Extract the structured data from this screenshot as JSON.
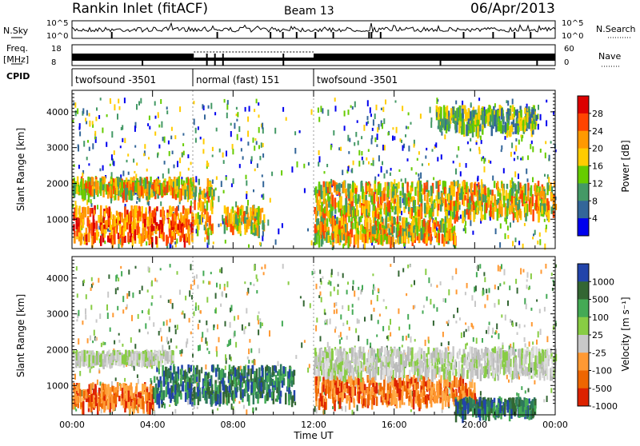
{
  "header": {
    "title": "Rankin Inlet (fitACF)",
    "beam": "Beam 13",
    "date": "06/Apr/2013"
  },
  "top_panels": {
    "nsky_label": "N.Sky",
    "nsearch_label": "N.Search",
    "nsky_ticks": [
      "10^5",
      "10^0"
    ],
    "freq_label": "Freq.",
    "freq_unit": "[MHz]",
    "freq_ticks": [
      "18",
      "8"
    ],
    "nave_label": "Nave",
    "nave_ticks": [
      "60",
      "0"
    ],
    "cpid_label": "CPID",
    "cpid_segments": [
      {
        "label": "twofsound -3501",
        "start_hour": 0,
        "end_hour": 6
      },
      {
        "label": "normal (fast) 151",
        "start_hour": 6,
        "end_hour": 12
      },
      {
        "label": "twofsound -3501",
        "start_hour": 12,
        "end_hour": 24
      }
    ]
  },
  "chart_data": [
    {
      "type": "heatmap",
      "name": "power",
      "ylabel": "Slant Range [km]",
      "yticks": [
        "4000",
        "3000",
        "2000",
        "1000"
      ],
      "ytick_values": [
        4000,
        3000,
        2000,
        1000
      ],
      "ylim": [
        180,
        4600
      ],
      "xlim": [
        0,
        24
      ],
      "colorbar_label": "Power [dB]",
      "colorbar_ticks": [
        "28",
        "24",
        "20",
        "16",
        "12",
        "8",
        "4"
      ],
      "colorbar_colors": [
        "#dd0000",
        "#ff4400",
        "#ff9900",
        "#ffcc00",
        "#66cc00",
        "#449966",
        "#336699",
        "#0000ee"
      ],
      "bands": [
        {
          "x0": 0,
          "x1": 6,
          "ymin": 500,
          "ymax": 1400,
          "level": "high"
        },
        {
          "x0": 6,
          "x1": 7,
          "ymin": 600,
          "ymax": 2200,
          "level": "mid"
        },
        {
          "x0": 7.5,
          "x1": 9.5,
          "ymin": 800,
          "ymax": 1400,
          "level": "mid"
        },
        {
          "x0": 0,
          "x1": 6,
          "ymin": 1800,
          "ymax": 2200,
          "level": "mid"
        },
        {
          "x0": 12,
          "x1": 24,
          "ymin": 1200,
          "ymax": 2100,
          "level": "mid"
        },
        {
          "x0": 12,
          "x1": 19,
          "ymin": 500,
          "ymax": 1100,
          "level": "mid"
        },
        {
          "x0": 18,
          "x1": 23,
          "ymin": 3600,
          "ymax": 4200,
          "level": "low"
        }
      ]
    },
    {
      "type": "heatmap",
      "name": "velocity",
      "ylabel": "Slant Range [km]",
      "xlabel": "Time UT",
      "yticks": [
        "4000",
        "3000",
        "2000",
        "1000"
      ],
      "ytick_values": [
        4000,
        3000,
        2000,
        1000
      ],
      "ylim": [
        180,
        4600
      ],
      "xlim": [
        0,
        24
      ],
      "xticks": [
        "00:00",
        "04:00",
        "08:00",
        "12:00",
        "16:00",
        "20:00",
        "00:00"
      ],
      "xtick_hours": [
        0,
        4,
        8,
        12,
        16,
        20,
        24
      ],
      "colorbar_label": "Velocity [m s⁻¹]",
      "colorbar_ticks": [
        "1000",
        "500",
        "100",
        "25",
        "-25",
        "-100",
        "-500",
        "-1000"
      ],
      "colorbar_colors": [
        "#2244aa",
        "#336633",
        "#44aa55",
        "#88cc44",
        "#c8c8c8",
        "#ff9933",
        "#ee6600",
        "#dd2200"
      ],
      "bands": [
        {
          "x0": 0,
          "x1": 4,
          "ymin": 500,
          "ymax": 1100,
          "level": "neg"
        },
        {
          "x0": 4,
          "x1": 11,
          "ymin": 700,
          "ymax": 1600,
          "level": "pos"
        },
        {
          "x0": 0,
          "x1": 5,
          "ymin": 1800,
          "ymax": 2000,
          "level": "zero"
        },
        {
          "x0": 12,
          "x1": 20,
          "ymin": 600,
          "ymax": 1300,
          "level": "neg"
        },
        {
          "x0": 12,
          "x1": 24,
          "ymin": 1400,
          "ymax": 2100,
          "level": "zero"
        },
        {
          "x0": 19,
          "x1": 23,
          "ymin": 300,
          "ymax": 700,
          "level": "pos"
        }
      ]
    }
  ]
}
